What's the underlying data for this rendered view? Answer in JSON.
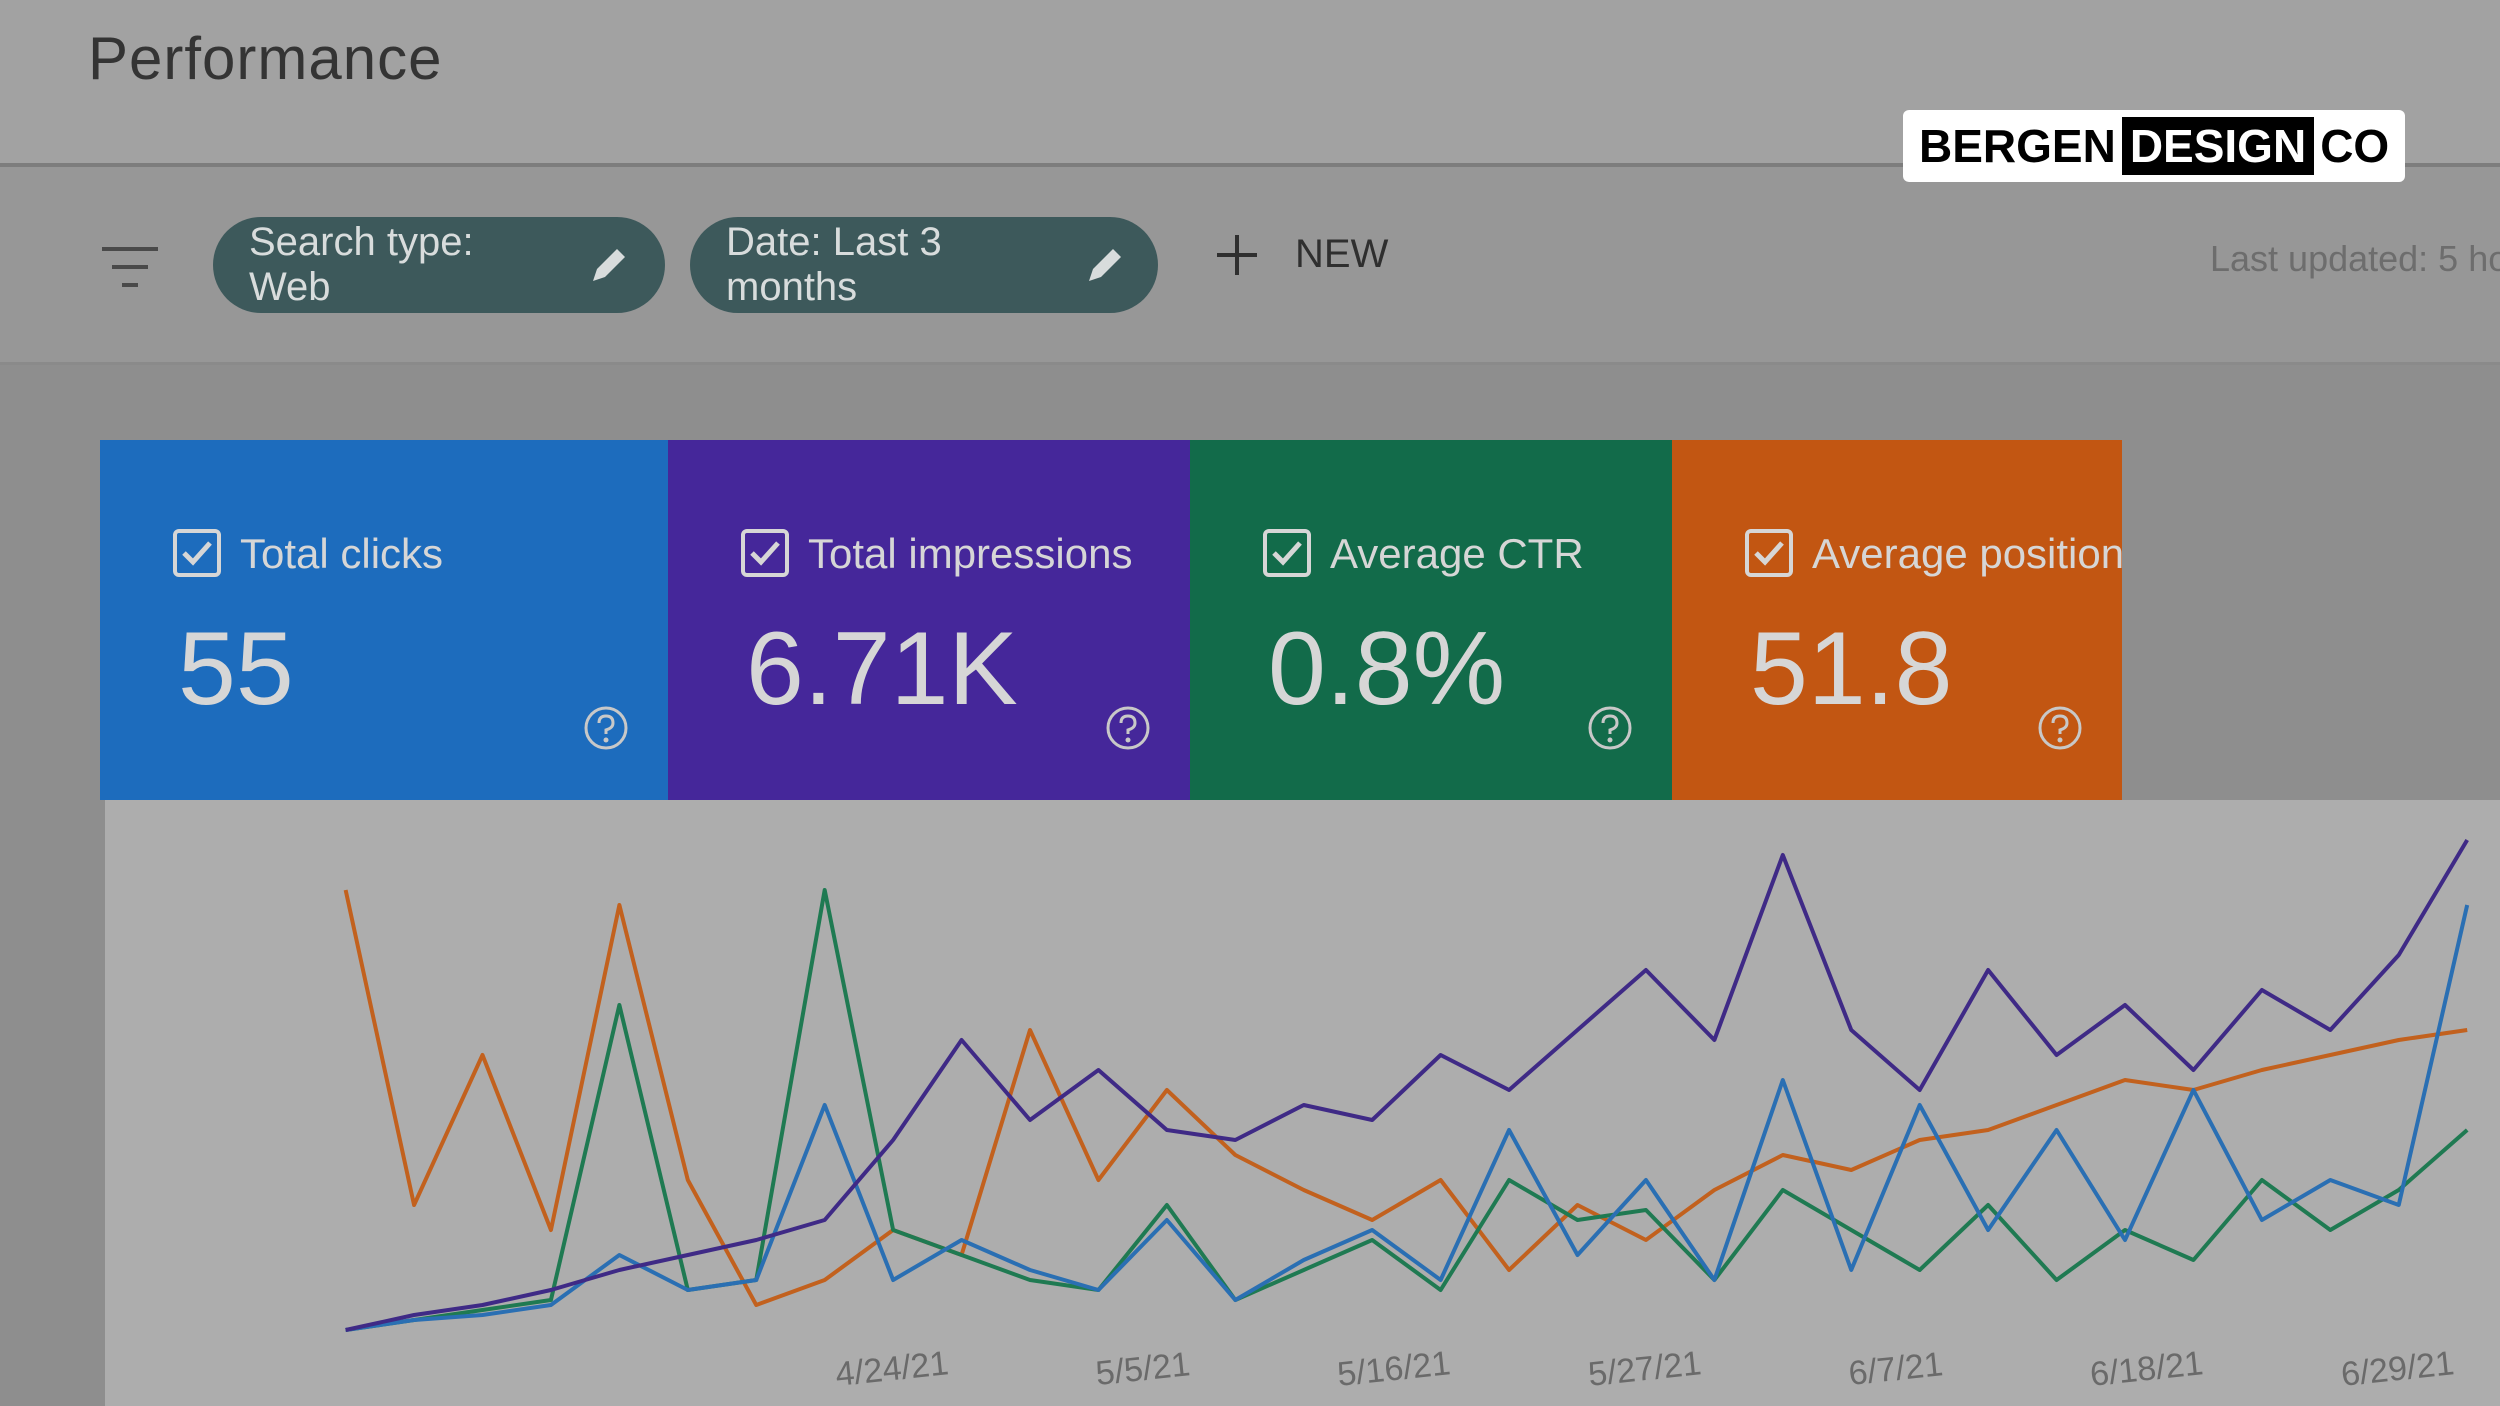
{
  "header": {
    "title": "Performance"
  },
  "logo": {
    "parts": [
      "BERGEN",
      "DESIGN",
      "CO"
    ]
  },
  "filters": {
    "chips": [
      "Search type: Web",
      "Date: Last 3 months"
    ],
    "new_button": "NEW",
    "last_updated": "Last updated: 5 ho"
  },
  "metrics": [
    {
      "label": "Total clicks",
      "value": "55",
      "color": "#1d6cbd"
    },
    {
      "label": "Total impressions",
      "value": "6.71K",
      "color": "#45279a"
    },
    {
      "label": "Average CTR",
      "value": "0.8%",
      "color": "#126b4a"
    },
    {
      "label": "Average position",
      "value": "51.8",
      "color": "#c25612"
    }
  ],
  "chart_data": {
    "type": "line",
    "x": [
      -24,
      -21,
      -18,
      -15,
      -12,
      -9,
      -6,
      -3,
      0,
      3,
      6,
      9,
      12,
      15,
      18,
      21,
      24,
      27,
      30,
      33,
      36,
      39,
      42,
      45,
      48,
      51,
      54,
      57,
      60,
      63,
      66,
      69
    ],
    "xlim": [
      -26,
      70
    ],
    "xticks": [
      {
        "value": 0,
        "label": "4/24/21"
      },
      {
        "value": 11,
        "label": "5/5/21"
      },
      {
        "value": 22,
        "label": "5/16/21"
      },
      {
        "value": 33,
        "label": "5/27/21"
      },
      {
        "value": 44,
        "label": "6/7/21"
      },
      {
        "value": 55,
        "label": "6/18/21"
      },
      {
        "value": 66,
        "label": "6/29/21"
      }
    ],
    "ylim": [
      0,
      100
    ],
    "series": [
      {
        "color": "#c2611e",
        "values": [
          88,
          25,
          55,
          20,
          85,
          30,
          5,
          10,
          20,
          15,
          60,
          30,
          48,
          35,
          28,
          22,
          30,
          12,
          25,
          18,
          28,
          35,
          32,
          38,
          40,
          45,
          50,
          48,
          52,
          55,
          58,
          60
        ]
      },
      {
        "color": "#1f7a52",
        "values": [
          0,
          2,
          4,
          6,
          65,
          8,
          10,
          88,
          20,
          15,
          10,
          8,
          25,
          6,
          12,
          18,
          8,
          30,
          22,
          24,
          10,
          28,
          20,
          12,
          25,
          10,
          20,
          14,
          30,
          20,
          28,
          40
        ]
      },
      {
        "color": "#2a6fb3",
        "values": [
          0,
          2,
          3,
          5,
          15,
          8,
          10,
          45,
          10,
          18,
          12,
          8,
          22,
          6,
          14,
          20,
          10,
          40,
          15,
          30,
          10,
          50,
          12,
          45,
          20,
          40,
          18,
          48,
          22,
          30,
          25,
          85
        ]
      },
      {
        "color": "#3f2a86",
        "values": [
          0,
          3,
          5,
          8,
          12,
          15,
          18,
          22,
          38,
          58,
          42,
          52,
          40,
          38,
          45,
          42,
          55,
          48,
          60,
          72,
          58,
          95,
          60,
          48,
          72,
          55,
          65,
          52,
          68,
          60,
          75,
          98
        ]
      }
    ]
  }
}
